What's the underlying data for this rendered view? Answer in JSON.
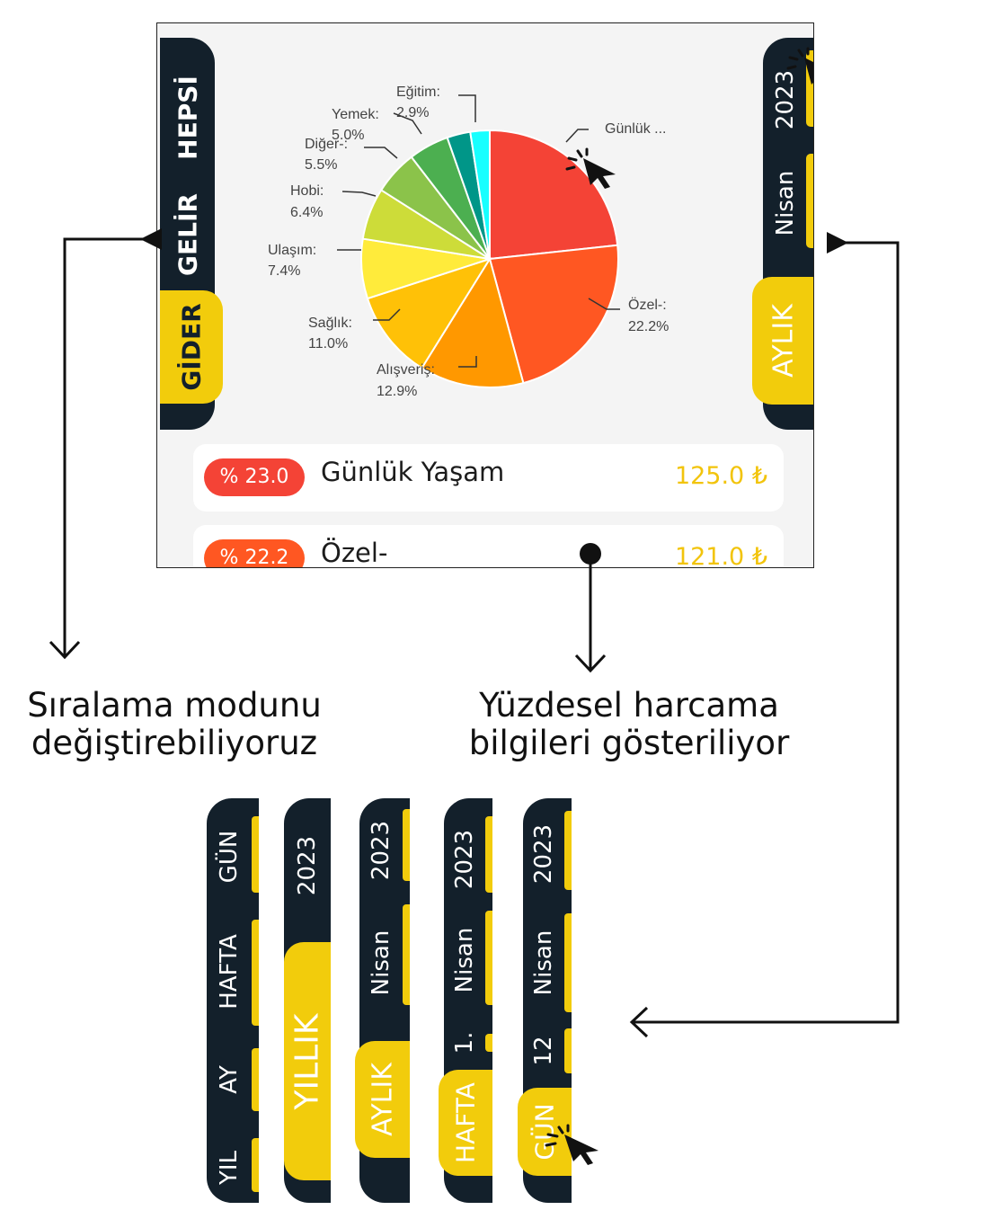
{
  "left_sidebar": {
    "tabs": [
      {
        "label": "HEPSİ",
        "active": false
      },
      {
        "label": "GELİR",
        "active": false
      },
      {
        "label": "GİDER",
        "active": true
      }
    ]
  },
  "right_sidebar": {
    "year": "2023",
    "month": "Nisan",
    "mode": "AYLIK"
  },
  "chart_data": {
    "type": "pie",
    "slices": [
      {
        "label": "Günlük ...",
        "value": 23.0,
        "color": "#f44336"
      },
      {
        "label": "Özel-:",
        "value": 22.2,
        "color": "#ff5722"
      },
      {
        "label": "Alışveriş:",
        "value": 12.9,
        "color": "#ff9800"
      },
      {
        "label": "Sağlık:",
        "value": 11.0,
        "color": "#ffc107"
      },
      {
        "label": "Ulaşım:",
        "value": 7.4,
        "color": "#ffeb3b"
      },
      {
        "label": "Hobi:",
        "value": 6.4,
        "color": "#cddc39"
      },
      {
        "label": "Diğer-:",
        "value": 5.5,
        "color": "#8bc34a"
      },
      {
        "label": "Yemek:",
        "value": 5.0,
        "color": "#4caf50"
      },
      {
        "label": "Eğitim:",
        "value": 2.9,
        "color": "#009688"
      },
      {
        "label": "",
        "value": 2.4,
        "color": "#18ffff"
      }
    ],
    "labels": {
      "gunluk": "Günlük ...",
      "ozel": "Özel-:",
      "ozel_pct": "22.2%",
      "alisveris": "Alışveriş:",
      "alisveris_pct": "12.9%",
      "saglik": "Sağlık:",
      "saglik_pct": "11.0%",
      "ulasim": "Ulaşım:",
      "ulasim_pct": "7.4%",
      "hobi": "Hobi:",
      "hobi_pct": "6.4%",
      "diger": "Diğer-:",
      "diger_pct": "5.5%",
      "yemek": "Yemek:",
      "yemek_pct": "5.0%",
      "egitim": "Eğitim:",
      "egitim_pct": "2.9%"
    }
  },
  "list": [
    {
      "pct": "% 23.0",
      "name": "Günlük Yaşam",
      "amount": "125.0 ₺",
      "color": "#f44336"
    },
    {
      "pct": "% 22.2",
      "name": "Özel-",
      "amount": "121.0 ₺",
      "color": "#ff5722"
    }
  ],
  "captions": {
    "left_line1": "Sıralama modunu",
    "left_line2": "değiştirebiliyoruz",
    "right_line1": "Yüzdesel harcama",
    "right_line2": "bilgileri gösteriliyor"
  },
  "strips": {
    "s1": {
      "gun": "GÜN",
      "hafta": "HAFTA",
      "ay": "AY",
      "yil": "YIL"
    },
    "s2": {
      "year": "2023",
      "mode": "YILLIK"
    },
    "s3": {
      "year": "2023",
      "month": "Nisan",
      "mode": "AYLIK"
    },
    "s4": {
      "year": "2023",
      "month": "Nisan",
      "week": "1.",
      "mode": "HAFTA"
    },
    "s5": {
      "year": "2023",
      "month": "Nisan",
      "day": "12",
      "mode": "GÜN"
    }
  }
}
